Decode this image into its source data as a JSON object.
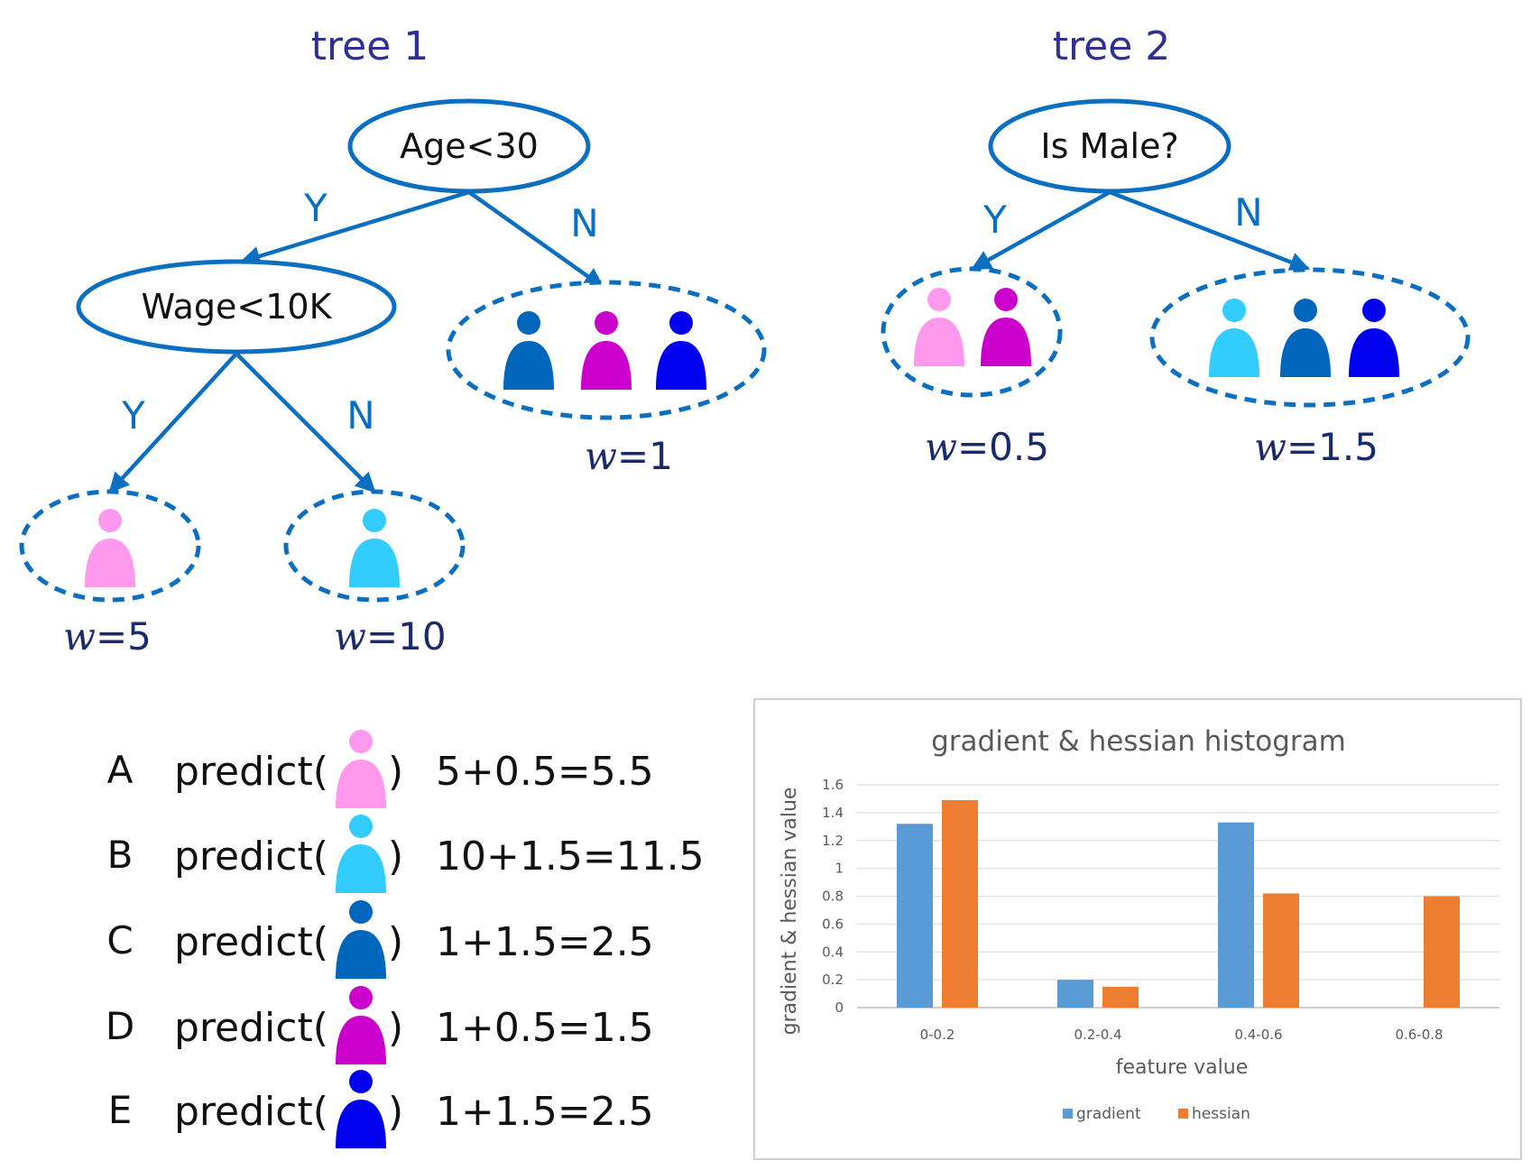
{
  "colors": {
    "edge": "#0b6fc1",
    "pink": "#ff99ee",
    "cyan": "#33ccff",
    "steel_blue": "#0066bb",
    "magenta": "#cc00cc",
    "blue": "#0000ee",
    "gradient": "#5b9bd5",
    "hessian": "#ed7d31"
  },
  "tree1": {
    "title": "tree 1",
    "root": "Age<30",
    "inner": "Wage<10K",
    "labels": {
      "root_yes": "Y",
      "root_no": "N",
      "inner_yes": "Y",
      "inner_no": "N"
    },
    "leaves": [
      {
        "w": "w",
        "value": "=5",
        "people": [
          "pink"
        ]
      },
      {
        "w": "w",
        "value": "=10",
        "people": [
          "cyan"
        ]
      },
      {
        "w": "w",
        "value": "=1",
        "people": [
          "steel_blue",
          "magenta",
          "blue"
        ]
      }
    ]
  },
  "tree2": {
    "title": "tree 2",
    "root": "Is Male?",
    "labels": {
      "root_yes": "Y",
      "root_no": "N"
    },
    "leaves": [
      {
        "w": "w",
        "value": "=0.5",
        "people": [
          "pink",
          "magenta"
        ]
      },
      {
        "w": "w",
        "value": "=1.5",
        "people": [
          "cyan",
          "steel_blue",
          "blue"
        ]
      }
    ]
  },
  "predictions": [
    {
      "letter": "A",
      "prefix": "predict(",
      "suffix": ")",
      "person": "pink",
      "result": "5+0.5=5.5"
    },
    {
      "letter": "B",
      "prefix": "predict(",
      "suffix": ")",
      "person": "cyan",
      "result": "10+1.5=11.5"
    },
    {
      "letter": "C",
      "prefix": "predict(",
      "suffix": ")",
      "person": "steel_blue",
      "result": "1+1.5=2.5"
    },
    {
      "letter": "D",
      "prefix": "predict(",
      "suffix": ")",
      "person": "magenta",
      "result": "1+0.5=1.5"
    },
    {
      "letter": "E",
      "prefix": "predict(",
      "suffix": ")",
      "person": "blue",
      "result": "1+1.5=2.5"
    }
  ],
  "chart_data": {
    "type": "bar",
    "title": "gradient & hessian histogram",
    "xlabel": "feature value",
    "ylabel": "gradient & hessian value",
    "categories": [
      "0-0.2",
      "0.2-0.4",
      "0.4-0.6",
      "0.6-0.8"
    ],
    "series": [
      {
        "name": "gradient",
        "values": [
          1.32,
          0.2,
          1.33,
          0
        ]
      },
      {
        "name": "hessian",
        "values": [
          1.49,
          0.15,
          0.82,
          0.8
        ]
      }
    ],
    "ylim": [
      0,
      1.6
    ],
    "yticks": [
      "0",
      "0.2",
      "0.4",
      "0.6",
      "0.8",
      "1",
      "1.2",
      "1.4",
      "1.6"
    ],
    "grid": true,
    "legend": "bottom"
  }
}
